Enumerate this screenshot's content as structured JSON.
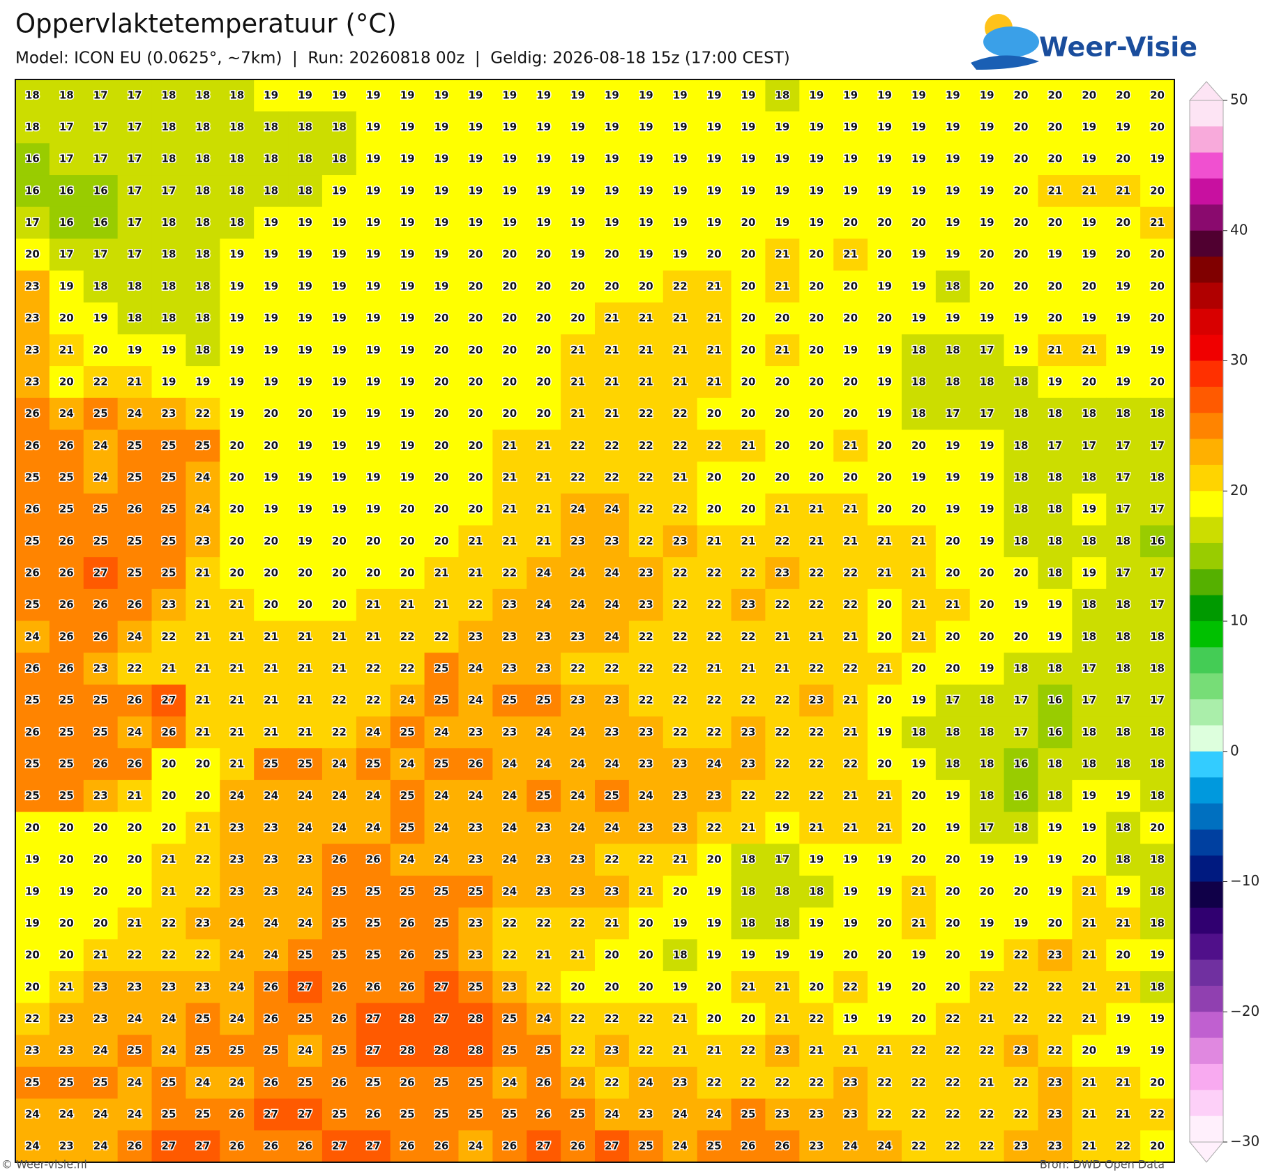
{
  "header": {
    "title": "Oppervlaktetemperatuur (°C)",
    "subtitle": "Model: ICON EU (0.0625°, ~7km)  |  Run: 20260818 00z  |  Geldig: 2026-08-18 15z (17:00 CEST)",
    "logo": "Weer-Visie"
  },
  "map": {
    "rows": [
      [
        18,
        18,
        17,
        17,
        18,
        18,
        18,
        19,
        19,
        19,
        19,
        19,
        19,
        19,
        19,
        19,
        19,
        19,
        19,
        19,
        19,
        19,
        18,
        19,
        19,
        19,
        19,
        19,
        19,
        20,
        20,
        20,
        20,
        20
      ],
      [
        18,
        17,
        17,
        17,
        18,
        18,
        18,
        18,
        18,
        18,
        19,
        19,
        19,
        19,
        19,
        19,
        19,
        19,
        19,
        19,
        19,
        19,
        19,
        19,
        19,
        19,
        19,
        19,
        19,
        20,
        20,
        19,
        19,
        20
      ],
      [
        16,
        17,
        17,
        17,
        18,
        18,
        18,
        18,
        18,
        18,
        19,
        19,
        19,
        19,
        19,
        19,
        19,
        19,
        19,
        19,
        19,
        19,
        19,
        19,
        19,
        19,
        19,
        19,
        19,
        20,
        20,
        19,
        20,
        19
      ],
      [
        16,
        16,
        16,
        17,
        17,
        18,
        18,
        18,
        18,
        19,
        19,
        19,
        19,
        19,
        19,
        19,
        19,
        19,
        19,
        19,
        19,
        19,
        19,
        19,
        19,
        19,
        19,
        19,
        19,
        20,
        21,
        21,
        21,
        20
      ],
      [
        17,
        16,
        16,
        17,
        18,
        18,
        18,
        19,
        19,
        19,
        19,
        19,
        19,
        19,
        19,
        19,
        19,
        19,
        19,
        19,
        19,
        20,
        19,
        19,
        20,
        20,
        20,
        19,
        19,
        20,
        20,
        19,
        20,
        21
      ],
      [
        20,
        17,
        17,
        17,
        18,
        18,
        19,
        19,
        19,
        19,
        19,
        19,
        19,
        20,
        20,
        20,
        19,
        20,
        19,
        19,
        20,
        20,
        21,
        20,
        21,
        20,
        19,
        19,
        20,
        20,
        19,
        19,
        20,
        20
      ],
      [
        23,
        19,
        18,
        18,
        18,
        18,
        19,
        19,
        19,
        19,
        19,
        19,
        19,
        20,
        20,
        20,
        20,
        20,
        20,
        22,
        21,
        20,
        21,
        20,
        20,
        19,
        19,
        18,
        20,
        20,
        20,
        20,
        19,
        20
      ],
      [
        23,
        20,
        19,
        18,
        18,
        18,
        19,
        19,
        19,
        19,
        19,
        19,
        20,
        20,
        20,
        20,
        20,
        21,
        21,
        21,
        21,
        20,
        20,
        20,
        20,
        20,
        19,
        19,
        19,
        19,
        20,
        19,
        19,
        20
      ],
      [
        23,
        21,
        20,
        19,
        19,
        18,
        19,
        19,
        19,
        19,
        19,
        19,
        20,
        20,
        20,
        20,
        21,
        21,
        21,
        21,
        21,
        20,
        21,
        20,
        19,
        19,
        18,
        18,
        17,
        19,
        21,
        21,
        19,
        19
      ],
      [
        23,
        20,
        22,
        21,
        19,
        19,
        19,
        19,
        19,
        19,
        19,
        19,
        20,
        20,
        20,
        20,
        21,
        21,
        21,
        21,
        21,
        20,
        20,
        20,
        20,
        19,
        18,
        18,
        18,
        18,
        19,
        20,
        19,
        20
      ],
      [
        26,
        24,
        25,
        24,
        23,
        22,
        19,
        20,
        20,
        19,
        19,
        19,
        20,
        20,
        20,
        20,
        21,
        21,
        22,
        22,
        20,
        20,
        20,
        20,
        20,
        19,
        18,
        17,
        17,
        18,
        18,
        18,
        18,
        18
      ],
      [
        26,
        26,
        24,
        25,
        25,
        25,
        20,
        20,
        19,
        19,
        19,
        19,
        20,
        20,
        21,
        21,
        22,
        22,
        22,
        22,
        22,
        21,
        20,
        20,
        21,
        20,
        20,
        19,
        19,
        18,
        17,
        17,
        17,
        17
      ],
      [
        25,
        25,
        24,
        25,
        25,
        24,
        20,
        19,
        19,
        19,
        19,
        19,
        20,
        20,
        21,
        21,
        22,
        22,
        22,
        21,
        20,
        20,
        20,
        20,
        20,
        20,
        19,
        19,
        19,
        18,
        18,
        18,
        17,
        18
      ],
      [
        26,
        25,
        25,
        26,
        25,
        24,
        20,
        19,
        19,
        19,
        19,
        20,
        20,
        20,
        21,
        21,
        24,
        24,
        22,
        22,
        20,
        20,
        21,
        21,
        21,
        20,
        20,
        19,
        19,
        18,
        18,
        19,
        17,
        17
      ],
      [
        25,
        26,
        25,
        25,
        25,
        23,
        20,
        20,
        19,
        20,
        20,
        20,
        20,
        21,
        21,
        21,
        23,
        23,
        22,
        23,
        21,
        21,
        22,
        21,
        21,
        21,
        21,
        20,
        19,
        18,
        18,
        18,
        18,
        16
      ],
      [
        26,
        26,
        27,
        25,
        25,
        21,
        20,
        20,
        20,
        20,
        20,
        20,
        21,
        21,
        22,
        24,
        24,
        24,
        23,
        22,
        22,
        22,
        23,
        22,
        22,
        21,
        21,
        20,
        20,
        20,
        18,
        19,
        17,
        17
      ],
      [
        25,
        26,
        26,
        26,
        23,
        21,
        21,
        20,
        20,
        20,
        21,
        21,
        21,
        22,
        23,
        24,
        24,
        24,
        23,
        22,
        22,
        23,
        22,
        22,
        22,
        20,
        21,
        21,
        20,
        19,
        19,
        18,
        18,
        17
      ],
      [
        24,
        26,
        26,
        24,
        22,
        21,
        21,
        21,
        21,
        21,
        21,
        22,
        22,
        23,
        23,
        23,
        23,
        24,
        22,
        22,
        22,
        22,
        21,
        21,
        21,
        20,
        21,
        20,
        20,
        20,
        19,
        18,
        18,
        18
      ],
      [
        26,
        26,
        23,
        22,
        21,
        21,
        21,
        21,
        21,
        21,
        22,
        22,
        25,
        24,
        23,
        23,
        22,
        22,
        22,
        22,
        21,
        21,
        21,
        22,
        22,
        21,
        20,
        20,
        19,
        18,
        18,
        17,
        18,
        18
      ],
      [
        25,
        25,
        25,
        26,
        27,
        21,
        21,
        21,
        21,
        22,
        22,
        24,
        25,
        24,
        25,
        25,
        23,
        23,
        22,
        22,
        22,
        22,
        22,
        23,
        21,
        20,
        19,
        17,
        18,
        17,
        16,
        17,
        17,
        17
      ],
      [
        26,
        25,
        25,
        24,
        26,
        21,
        21,
        21,
        21,
        22,
        24,
        25,
        24,
        23,
        23,
        24,
        24,
        23,
        23,
        22,
        22,
        23,
        22,
        22,
        21,
        19,
        18,
        18,
        18,
        17,
        16,
        18,
        18,
        18
      ],
      [
        25,
        25,
        26,
        26,
        20,
        20,
        21,
        25,
        25,
        24,
        25,
        24,
        25,
        26,
        24,
        24,
        24,
        24,
        23,
        23,
        24,
        23,
        22,
        22,
        22,
        20,
        19,
        18,
        18,
        16,
        18,
        18,
        18,
        18
      ],
      [
        25,
        25,
        23,
        21,
        20,
        20,
        24,
        24,
        24,
        24,
        24,
        25,
        24,
        24,
        24,
        25,
        24,
        25,
        24,
        23,
        23,
        22,
        22,
        22,
        21,
        21,
        20,
        19,
        18,
        16,
        18,
        19,
        19,
        18
      ],
      [
        20,
        20,
        20,
        20,
        20,
        21,
        23,
        23,
        24,
        24,
        24,
        25,
        24,
        23,
        24,
        23,
        24,
        24,
        23,
        23,
        22,
        21,
        19,
        21,
        21,
        21,
        20,
        19,
        17,
        18,
        19,
        19,
        18,
        20
      ],
      [
        19,
        20,
        20,
        20,
        21,
        22,
        23,
        23,
        23,
        26,
        26,
        24,
        24,
        23,
        24,
        23,
        23,
        22,
        22,
        21,
        20,
        18,
        17,
        19,
        19,
        19,
        20,
        20,
        19,
        19,
        19,
        20,
        18,
        18
      ],
      [
        19,
        19,
        20,
        20,
        21,
        22,
        23,
        23,
        24,
        25,
        25,
        25,
        25,
        25,
        24,
        23,
        23,
        23,
        21,
        20,
        19,
        18,
        18,
        18,
        19,
        19,
        21,
        20,
        20,
        20,
        19,
        21,
        19,
        18
      ],
      [
        19,
        20,
        20,
        21,
        22,
        23,
        24,
        24,
        24,
        25,
        25,
        26,
        25,
        23,
        22,
        22,
        22,
        21,
        20,
        19,
        19,
        18,
        18,
        19,
        19,
        20,
        21,
        20,
        19,
        19,
        20,
        21,
        21,
        18
      ],
      [
        20,
        20,
        21,
        22,
        22,
        22,
        24,
        24,
        25,
        25,
        25,
        26,
        25,
        23,
        22,
        21,
        21,
        20,
        20,
        18,
        19,
        19,
        19,
        19,
        20,
        20,
        19,
        20,
        19,
        22,
        23,
        21,
        20,
        19
      ],
      [
        20,
        21,
        23,
        23,
        23,
        23,
        24,
        26,
        27,
        26,
        26,
        26,
        27,
        25,
        23,
        22,
        20,
        20,
        20,
        19,
        20,
        21,
        21,
        20,
        22,
        19,
        20,
        20,
        22,
        22,
        22,
        21,
        21,
        18
      ],
      [
        22,
        23,
        23,
        24,
        24,
        25,
        24,
        26,
        25,
        26,
        27,
        28,
        27,
        28,
        25,
        24,
        22,
        22,
        22,
        21,
        20,
        20,
        21,
        22,
        19,
        19,
        20,
        22,
        21,
        22,
        22,
        21,
        19,
        19
      ],
      [
        23,
        23,
        24,
        25,
        24,
        25,
        25,
        25,
        24,
        25,
        27,
        28,
        28,
        28,
        25,
        25,
        22,
        23,
        22,
        21,
        21,
        22,
        23,
        21,
        21,
        21,
        22,
        22,
        22,
        23,
        22,
        20,
        19,
        19
      ],
      [
        25,
        25,
        25,
        24,
        25,
        24,
        24,
        26,
        25,
        26,
        25,
        26,
        25,
        25,
        24,
        26,
        24,
        22,
        24,
        23,
        22,
        22,
        22,
        22,
        23,
        22,
        22,
        22,
        21,
        22,
        23,
        21,
        21,
        20
      ],
      [
        24,
        24,
        24,
        24,
        25,
        25,
        26,
        27,
        27,
        25,
        26,
        25,
        25,
        25,
        25,
        26,
        25,
        24,
        23,
        24,
        24,
        25,
        23,
        23,
        23,
        22,
        22,
        22,
        22,
        22,
        23,
        21,
        21,
        22
      ],
      [
        24,
        23,
        24,
        26,
        27,
        27,
        26,
        26,
        26,
        27,
        27,
        26,
        26,
        24,
        26,
        27,
        26,
        27,
        25,
        24,
        25,
        26,
        26,
        23,
        24,
        24,
        22,
        22,
        22,
        23,
        23,
        21,
        22,
        20
      ]
    ]
  },
  "colorbar": {
    "ticks": [
      {
        "value": 50,
        "label": "50"
      },
      {
        "value": 40,
        "label": "40"
      },
      {
        "value": 30,
        "label": "30"
      },
      {
        "value": 20,
        "label": "20"
      },
      {
        "value": 10,
        "label": "10"
      },
      {
        "value": 0,
        "label": "0"
      },
      {
        "value": -10,
        "label": "−10"
      },
      {
        "value": -20,
        "label": "−20"
      },
      {
        "value": -30,
        "label": "−30"
      }
    ],
    "colors": [
      "#fde4f4",
      "#f8aadb",
      "#f050d0",
      "#c810a0",
      "#8a0a6e",
      "#500030",
      "#800000",
      "#b00000",
      "#d80000",
      "#f00000",
      "#ff3000",
      "#ff5a00",
      "#ff8400",
      "#ffb000",
      "#ffd400",
      "#ffff00",
      "#ccdd00",
      "#99cc00",
      "#55b000",
      "#009a00",
      "#00c000",
      "#44cc55",
      "#77dd77",
      "#aaeeaa",
      "#ddffdd",
      "#33ccff",
      "#0099dd",
      "#0070c0",
      "#0040a0",
      "#001a80",
      "#100048",
      "#300070",
      "#50108a",
      "#7030a0",
      "#9040b0",
      "#c060d0",
      "#e088e0",
      "#f8aaf0",
      "#fdd0f8",
      "#fff0fc"
    ]
  },
  "footer": {
    "left": "© Weer-visie.nl",
    "right": "Bron: DWD Open Data"
  }
}
